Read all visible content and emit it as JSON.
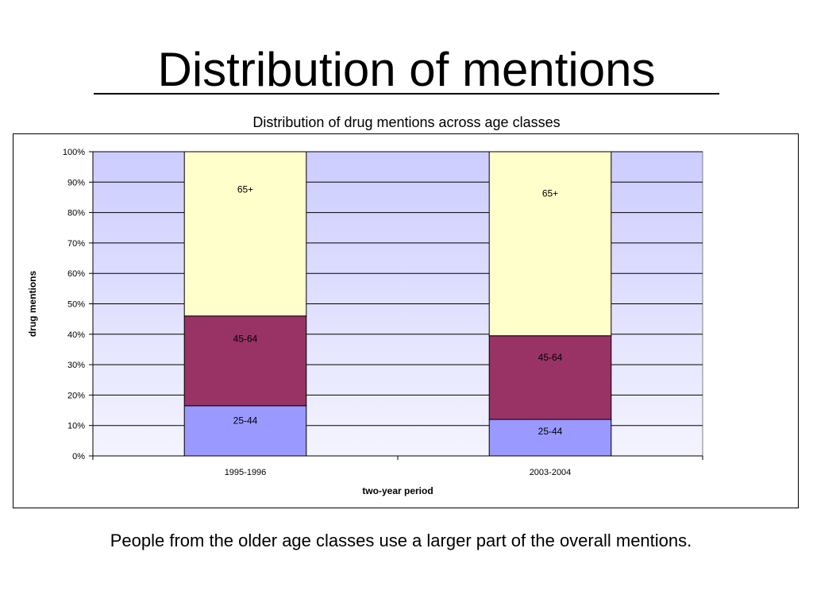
{
  "slide": {
    "title": "Distribution of mentions",
    "caption": "People from the older age classes use a larger part of the overall mentions."
  },
  "chart_data": {
    "type": "bar",
    "stacked": true,
    "percent_stacked": true,
    "title": "Distribution of drug mentions across age classes",
    "xlabel": "two-year period",
    "ylabel": "drug mentions",
    "categories": [
      "1995-1996",
      "2003-2004"
    ],
    "ylim": [
      0,
      100
    ],
    "yticks": [
      "0%",
      "10%",
      "20%",
      "30%",
      "40%",
      "50%",
      "60%",
      "70%",
      "80%",
      "90%",
      "100%"
    ],
    "grid": true,
    "legend": "none",
    "series": [
      {
        "name": "25-44",
        "values": [
          16.5,
          12
        ],
        "color": "#9999ff"
      },
      {
        "name": "45-64",
        "values": [
          29.5,
          27.5
        ],
        "color": "#993366"
      },
      {
        "name": "65+",
        "values": [
          54,
          60.5
        ],
        "color": "#ffffcc"
      }
    ],
    "plot_background": {
      "top_color": "#ccccff",
      "bottom_color": "#f4f4ff"
    }
  }
}
